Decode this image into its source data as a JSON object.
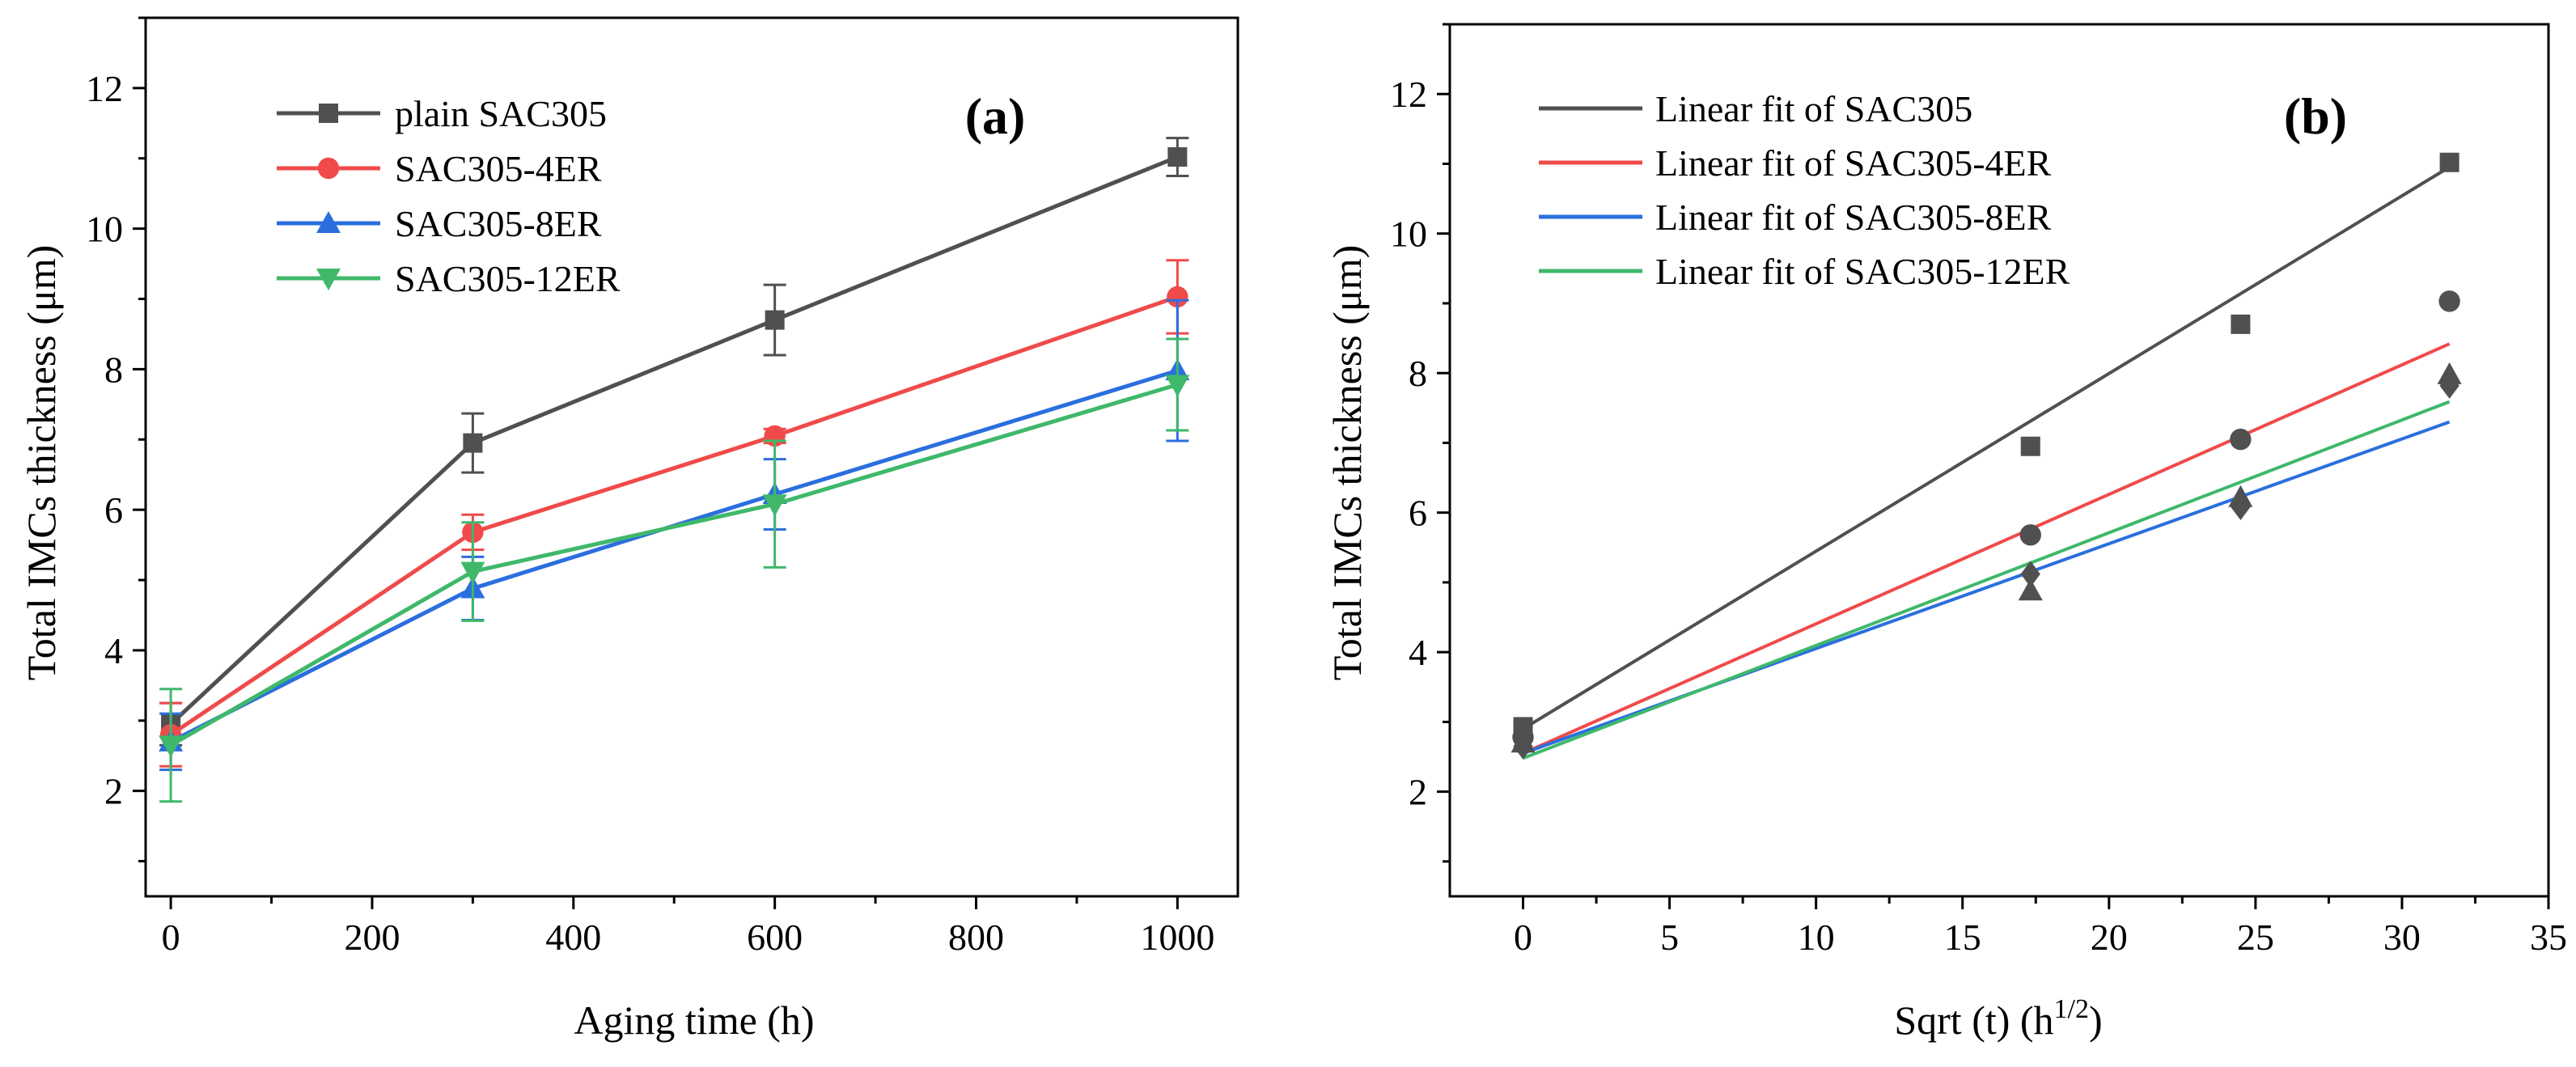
{
  "chart_data": [
    {
      "panel": "a",
      "type": "line",
      "title": "(a)",
      "xlabel": "Aging time (h)",
      "ylabel": "Total IMCs thickness (μm)",
      "xlim": [
        -25,
        1060
      ],
      "ylim": [
        0.5,
        13.0
      ],
      "xticks": [
        0,
        200,
        400,
        600,
        800,
        1000
      ],
      "xtick_labels": [
        "0",
        "200",
        "400",
        "600",
        "800",
        "1000"
      ],
      "yticks": [
        2,
        4,
        6,
        8,
        10,
        12
      ],
      "ytick_labels": [
        "2",
        "4",
        "6",
        "8",
        "10",
        "12"
      ],
      "legend_position": "top-left",
      "x": [
        0,
        300,
        600,
        1000
      ],
      "series": [
        {
          "name": "plain SAC305",
          "color": "#505050",
          "marker": "square",
          "values": [
            2.95,
            6.95,
            8.7,
            11.02
          ],
          "errors": [
            0.3,
            0.42,
            0.5,
            0.27
          ]
        },
        {
          "name": "SAC305-4ER",
          "color": "#f04a4a",
          "marker": "circle",
          "values": [
            2.8,
            5.68,
            7.05,
            9.03
          ],
          "errors": [
            0.45,
            0.25,
            0.1,
            0.52
          ]
        },
        {
          "name": "SAC305-8ER",
          "color": "#2b6fde",
          "marker": "triangle-up",
          "values": [
            2.7,
            4.88,
            6.22,
            7.98
          ],
          "errors": [
            0.4,
            0.45,
            0.5,
            1.0
          ]
        },
        {
          "name": "SAC305-12ER",
          "color": "#3fb86a",
          "marker": "triangle-down",
          "values": [
            2.65,
            5.12,
            6.08,
            7.78
          ],
          "errors": [
            0.8,
            0.7,
            0.9,
            0.65
          ]
        }
      ]
    },
    {
      "panel": "b",
      "type": "scatter",
      "title": "(b)",
      "xlabel": "Sqrt (t) (h",
      "xlabel_superscript": "1/2",
      "xlabel_suffix": ")",
      "ylabel": "Total IMCs thickness (μm)",
      "xlim": [
        -2.5,
        35
      ],
      "ylim": [
        0.5,
        13.0
      ],
      "xticks": [
        0,
        5,
        10,
        15,
        20,
        25,
        30,
        35
      ],
      "xtick_labels": [
        "0",
        "5",
        "10",
        "15",
        "20",
        "25",
        "30",
        "35"
      ],
      "yticks": [
        2,
        4,
        6,
        8,
        10,
        12
      ],
      "ytick_labels": [
        "2",
        "4",
        "6",
        "8",
        "10",
        "12"
      ],
      "legend_position": "top-left",
      "x": [
        0,
        17.32,
        24.49,
        31.62
      ],
      "points": [
        {
          "name": "SAC305",
          "marker": "square",
          "color": "#505050",
          "values": [
            2.93,
            6.95,
            8.7,
            11.02
          ]
        },
        {
          "name": "SAC305-4ER",
          "marker": "circle",
          "color": "#505050",
          "values": [
            2.78,
            5.68,
            7.05,
            9.03
          ]
        },
        {
          "name": "SAC305-8ER",
          "marker": "triangle-up",
          "color": "#505050",
          "values": [
            2.7,
            4.88,
            6.22,
            7.98
          ]
        },
        {
          "name": "SAC305-12ER",
          "marker": "diamond",
          "color": "#505050",
          "values": [
            2.65,
            5.12,
            6.08,
            7.82
          ]
        }
      ],
      "fits": [
        {
          "name": "Linear fit of SAC305",
          "color": "#505050",
          "intercept": 2.9,
          "slope": 0.2547,
          "x_range": [
            0,
            31.62
          ]
        },
        {
          "name": "Linear fit of SAC305-4ER",
          "color": "#f04a4a",
          "intercept": 2.55,
          "slope": 0.1856,
          "x_range": [
            0,
            31.62
          ]
        },
        {
          "name": "Linear fit of SAC305-8ER",
          "color": "#2b6fde",
          "intercept": 2.55,
          "slope": 0.1502,
          "x_range": [
            0,
            31.62
          ]
        },
        {
          "name": "Linear fit of SAC305-12ER",
          "color": "#3fb86a",
          "intercept": 2.48,
          "slope": 0.1616,
          "x_range": [
            0,
            31.62
          ]
        }
      ]
    }
  ]
}
